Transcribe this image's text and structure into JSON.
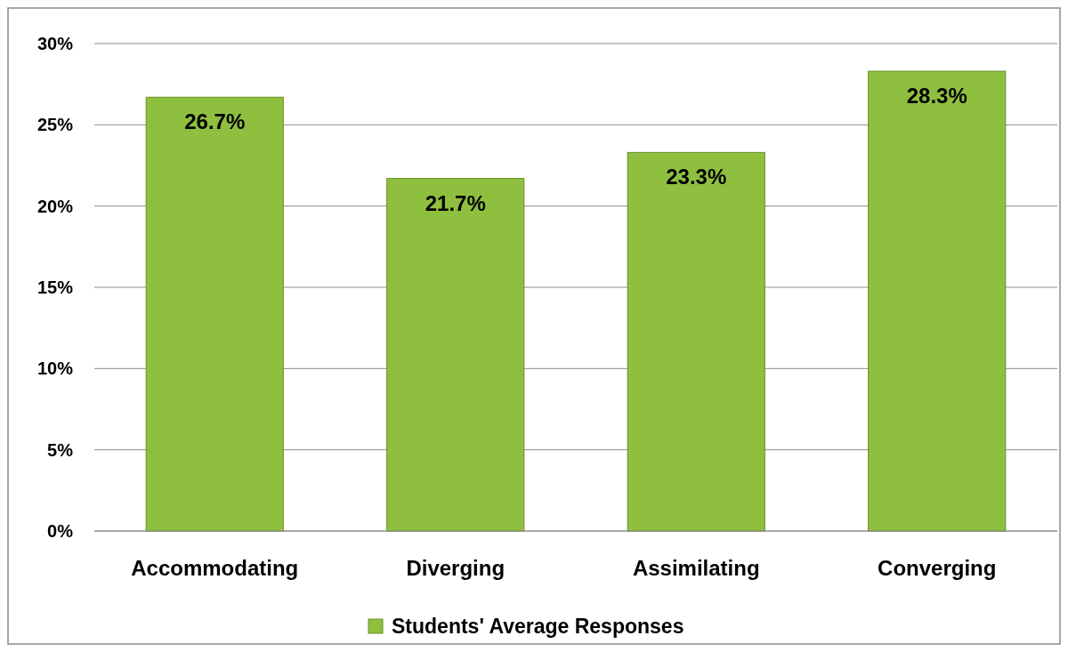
{
  "chart_data": {
    "type": "bar",
    "categories": [
      "Accommodating",
      "Diverging",
      "Assimilating",
      "Converging"
    ],
    "series": [
      {
        "name": "Students' Average Responses",
        "color": "#8fbf3f",
        "values": [
          26.7,
          21.7,
          23.3,
          28.3
        ],
        "value_labels": [
          "26.7%",
          "21.7%",
          "23.3%",
          "28.3%"
        ]
      }
    ],
    "ylim": [
      0,
      30
    ],
    "yticks": [
      {
        "value": 0,
        "label": "0%"
      },
      {
        "value": 5,
        "label": "5%"
      },
      {
        "value": 10,
        "label": "10%"
      },
      {
        "value": 15,
        "label": "15%"
      },
      {
        "value": 20,
        "label": "20%"
      },
      {
        "value": 25,
        "label": "25%"
      },
      {
        "value": 30,
        "label": "30%"
      }
    ],
    "grid": "y",
    "legend": "bottom"
  }
}
